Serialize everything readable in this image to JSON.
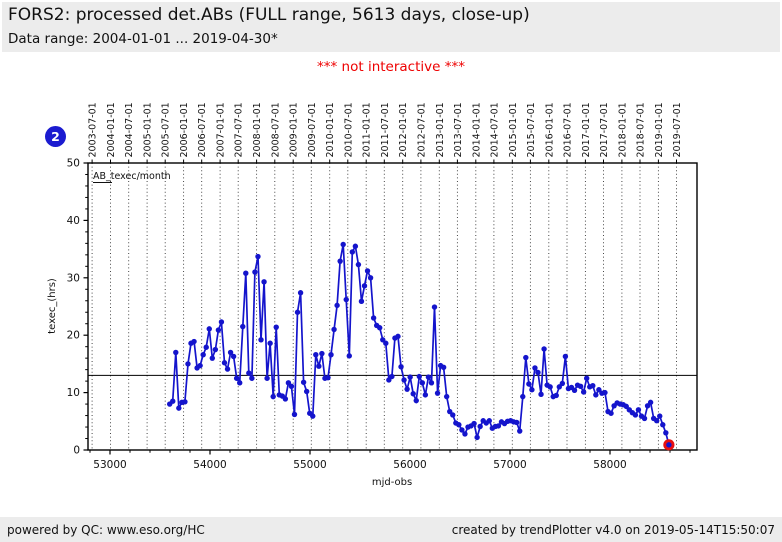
{
  "header": {
    "title": "FORS2: processed det.ABs (FULL range, 5613 days, close-up)",
    "data_range": "Data range: 2004-01-01 ... 2019-04-30*"
  },
  "note": {
    "text": "*** not interactive ***",
    "color": "#ee0000"
  },
  "badge": {
    "label": "2",
    "color": "#1b1bd0"
  },
  "footer": {
    "left": "powered by QC: www.eso.org/HC",
    "right": "created by trendPlotter v4.0 on 2019-05-14T15:50:07"
  },
  "chart_data": {
    "type": "line",
    "xlabel": "mjd-obs",
    "ylabel": "texec_(hrs)",
    "legend": [
      "AB_texec/month"
    ],
    "legend_position": "top-left-inside",
    "grid": "vertical-dotted-6month",
    "xlim": [
      52780,
      58870
    ],
    "ylim": [
      0,
      50
    ],
    "x_ticks": [
      53000,
      54000,
      55000,
      56000,
      57000,
      58000
    ],
    "x_minor_tick_step": 200,
    "y_ticks": [
      0,
      10,
      20,
      30,
      40,
      50
    ],
    "y_minor_tick_step": 2,
    "top_axis": {
      "labels": [
        "2003-07-01",
        "2004-01-01",
        "2004-07-01",
        "2005-01-01",
        "2005-07-01",
        "2006-01-01",
        "2006-07-01",
        "2007-01-01",
        "2007-07-01",
        "2008-01-01",
        "2008-07-01",
        "2009-01-01",
        "2009-07-01",
        "2010-01-01",
        "2010-07-01",
        "2011-01-01",
        "2011-07-01",
        "2012-01-01",
        "2012-07-01",
        "2013-01-01",
        "2013-07-01",
        "2014-01-01",
        "2014-07-01",
        "2015-01-01",
        "2015-07-01",
        "2016-01-01",
        "2016-07-01",
        "2017-01-01",
        "2017-07-01",
        "2018-01-01",
        "2018-07-01",
        "2019-01-01",
        "2019-07-01"
      ],
      "mjds": [
        52821,
        53005,
        53187,
        53371,
        53552,
        53736,
        53917,
        54101,
        54282,
        54466,
        54648,
        54832,
        55013,
        55197,
        55378,
        55562,
        55743,
        55927,
        56109,
        56293,
        56474,
        56658,
        56839,
        57023,
        57204,
        57388,
        57570,
        57754,
        57935,
        58119,
        58300,
        58484,
        58665
      ]
    },
    "reference_line_y": 13,
    "series": [
      {
        "name": "AB_texec/month",
        "color": "#1414cc",
        "start_mjd": 53597,
        "step_days": 30.4375,
        "values": [
          8.0,
          8.5,
          17.0,
          7.3,
          8.3,
          8.4,
          15.0,
          18.6,
          18.9,
          14.3,
          14.7,
          16.6,
          17.9,
          21.1,
          16.0,
          17.5,
          20.9,
          22.3,
          15.2,
          14.1,
          17.0,
          16.3,
          12.5,
          11.7,
          21.5,
          30.8,
          13.4,
          12.5,
          31.0,
          33.7,
          19.2,
          29.3,
          12.5,
          18.6,
          9.3,
          21.4,
          9.6,
          9.4,
          8.9,
          11.7,
          11.1,
          6.2,
          24.0,
          27.4,
          11.8,
          10.2,
          6.4,
          5.9,
          16.6,
          14.6,
          16.8,
          12.5,
          12.6,
          16.6,
          21.0,
          25.2,
          32.9,
          35.8,
          26.2,
          16.4,
          34.5,
          35.5,
          32.3,
          25.9,
          28.6,
          31.2,
          30.0,
          23.0,
          21.7,
          21.3,
          19.2,
          18.6,
          12.2,
          12.8,
          19.5,
          19.8,
          14.5,
          12.2,
          10.6,
          12.7,
          9.8,
          8.6,
          12.8,
          11.7,
          9.6,
          12.7,
          11.7,
          24.9,
          9.9,
          14.7,
          14.4,
          9.3,
          6.7,
          6.1,
          4.7,
          4.4,
          3.5,
          2.8,
          4.0,
          4.2,
          4.6,
          2.2,
          4.1,
          5.1,
          4.7,
          5.1,
          3.8,
          4.1,
          4.2,
          4.9,
          4.6,
          5.0,
          5.1,
          4.9,
          4.8,
          3.3,
          9.3,
          16.1,
          11.5,
          10.5,
          14.3,
          13.5,
          9.7,
          17.6,
          11.3,
          11.0,
          9.3,
          9.5,
          11.0,
          11.6,
          16.3,
          10.7,
          10.9,
          10.4,
          11.3,
          11.1,
          10.1,
          12.5,
          11.0,
          11.2,
          9.6,
          10.5,
          9.9,
          10.0,
          6.7,
          6.4,
          7.7,
          8.2,
          8.0,
          7.9,
          7.6,
          7.0,
          6.5,
          6.1,
          7.0,
          5.9,
          5.5,
          7.7,
          8.3,
          5.5,
          5.1,
          5.9,
          4.4,
          3.0,
          0.9
        ]
      }
    ],
    "highlight_last_point": {
      "value": 0.9,
      "marker": "red-ring",
      "color": "#e81010"
    }
  }
}
